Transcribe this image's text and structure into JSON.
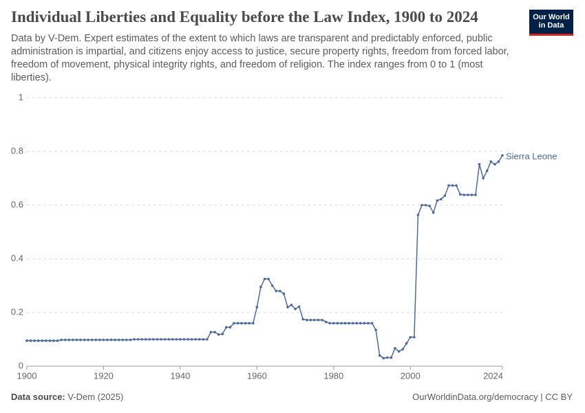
{
  "header": {
    "logo": [
      "Our World",
      "in Data"
    ]
  },
  "chart_data": {
    "type": "line",
    "title": "Individual Liberties and Equality before the Law Index, 1900 to 2024",
    "subtitle": "Data by V-Dem. Expert estimates of the extent to which laws are transparent and predictably enforced, public administration is impartial, and citizens enjoy access to justice, secure property rights, freedom from forced labor, freedom of movement, physical integrity rights, and freedom of religion. The index ranges from 0 to 1 (most liberties).",
    "x": [
      1900,
      1901,
      1902,
      1903,
      1904,
      1905,
      1906,
      1907,
      1908,
      1909,
      1910,
      1911,
      1912,
      1913,
      1914,
      1915,
      1916,
      1917,
      1918,
      1919,
      1920,
      1921,
      1922,
      1923,
      1924,
      1925,
      1926,
      1927,
      1928,
      1929,
      1930,
      1931,
      1932,
      1933,
      1934,
      1935,
      1936,
      1937,
      1938,
      1939,
      1940,
      1941,
      1942,
      1943,
      1944,
      1945,
      1946,
      1947,
      1948,
      1949,
      1950,
      1951,
      1952,
      1953,
      1954,
      1955,
      1956,
      1957,
      1958,
      1959,
      1960,
      1961,
      1962,
      1963,
      1964,
      1965,
      1966,
      1967,
      1968,
      1969,
      1970,
      1971,
      1972,
      1973,
      1974,
      1975,
      1976,
      1977,
      1978,
      1979,
      1980,
      1981,
      1982,
      1983,
      1984,
      1985,
      1986,
      1987,
      1988,
      1989,
      1990,
      1991,
      1992,
      1993,
      1994,
      1995,
      1996,
      1997,
      1998,
      1999,
      2000,
      2001,
      2002,
      2003,
      2004,
      2005,
      2006,
      2007,
      2008,
      2009,
      2010,
      2011,
      2012,
      2013,
      2014,
      2015,
      2016,
      2017,
      2018,
      2019,
      2020,
      2021,
      2022,
      2023,
      2024
    ],
    "series": [
      {
        "name": "Sierra Leone",
        "color": "#4c6a9c",
        "values": [
          0.095,
          0.095,
          0.095,
          0.095,
          0.095,
          0.095,
          0.095,
          0.095,
          0.095,
          0.098,
          0.098,
          0.098,
          0.098,
          0.098,
          0.098,
          0.098,
          0.098,
          0.098,
          0.098,
          0.098,
          0.098,
          0.098,
          0.098,
          0.098,
          0.098,
          0.098,
          0.098,
          0.098,
          0.1,
          0.1,
          0.1,
          0.1,
          0.1,
          0.1,
          0.1,
          0.1,
          0.1,
          0.1,
          0.1,
          0.1,
          0.1,
          0.1,
          0.1,
          0.1,
          0.1,
          0.1,
          0.1,
          0.1,
          0.127,
          0.127,
          0.118,
          0.12,
          0.145,
          0.145,
          0.16,
          0.16,
          0.16,
          0.16,
          0.16,
          0.16,
          0.22,
          0.295,
          0.325,
          0.325,
          0.3,
          0.28,
          0.28,
          0.27,
          0.22,
          0.228,
          0.213,
          0.222,
          0.175,
          0.172,
          0.172,
          0.172,
          0.172,
          0.172,
          0.165,
          0.16,
          0.16,
          0.16,
          0.16,
          0.16,
          0.16,
          0.16,
          0.16,
          0.16,
          0.16,
          0.16,
          0.16,
          0.135,
          0.04,
          0.03,
          0.032,
          0.032,
          0.067,
          0.055,
          0.063,
          0.085,
          0.108,
          0.108,
          0.563,
          0.6,
          0.6,
          0.597,
          0.572,
          0.617,
          0.622,
          0.635,
          0.673,
          0.673,
          0.673,
          0.64,
          0.638,
          0.638,
          0.638,
          0.638,
          0.752,
          0.7,
          0.728,
          0.762,
          0.752,
          0.762,
          0.785
        ]
      }
    ],
    "xlim": [
      1900,
      2024
    ],
    "xticks": [
      1900,
      1920,
      1940,
      1960,
      1980,
      2000,
      2024
    ],
    "ylim": [
      0,
      1
    ],
    "yticks": [
      0,
      0.2,
      0.4,
      0.6,
      0.8,
      1
    ],
    "grid": true,
    "source_label": "Data source:",
    "source": "V-Dem (2025)",
    "footer": "OurWorldinData.org/democracy | CC BY"
  }
}
